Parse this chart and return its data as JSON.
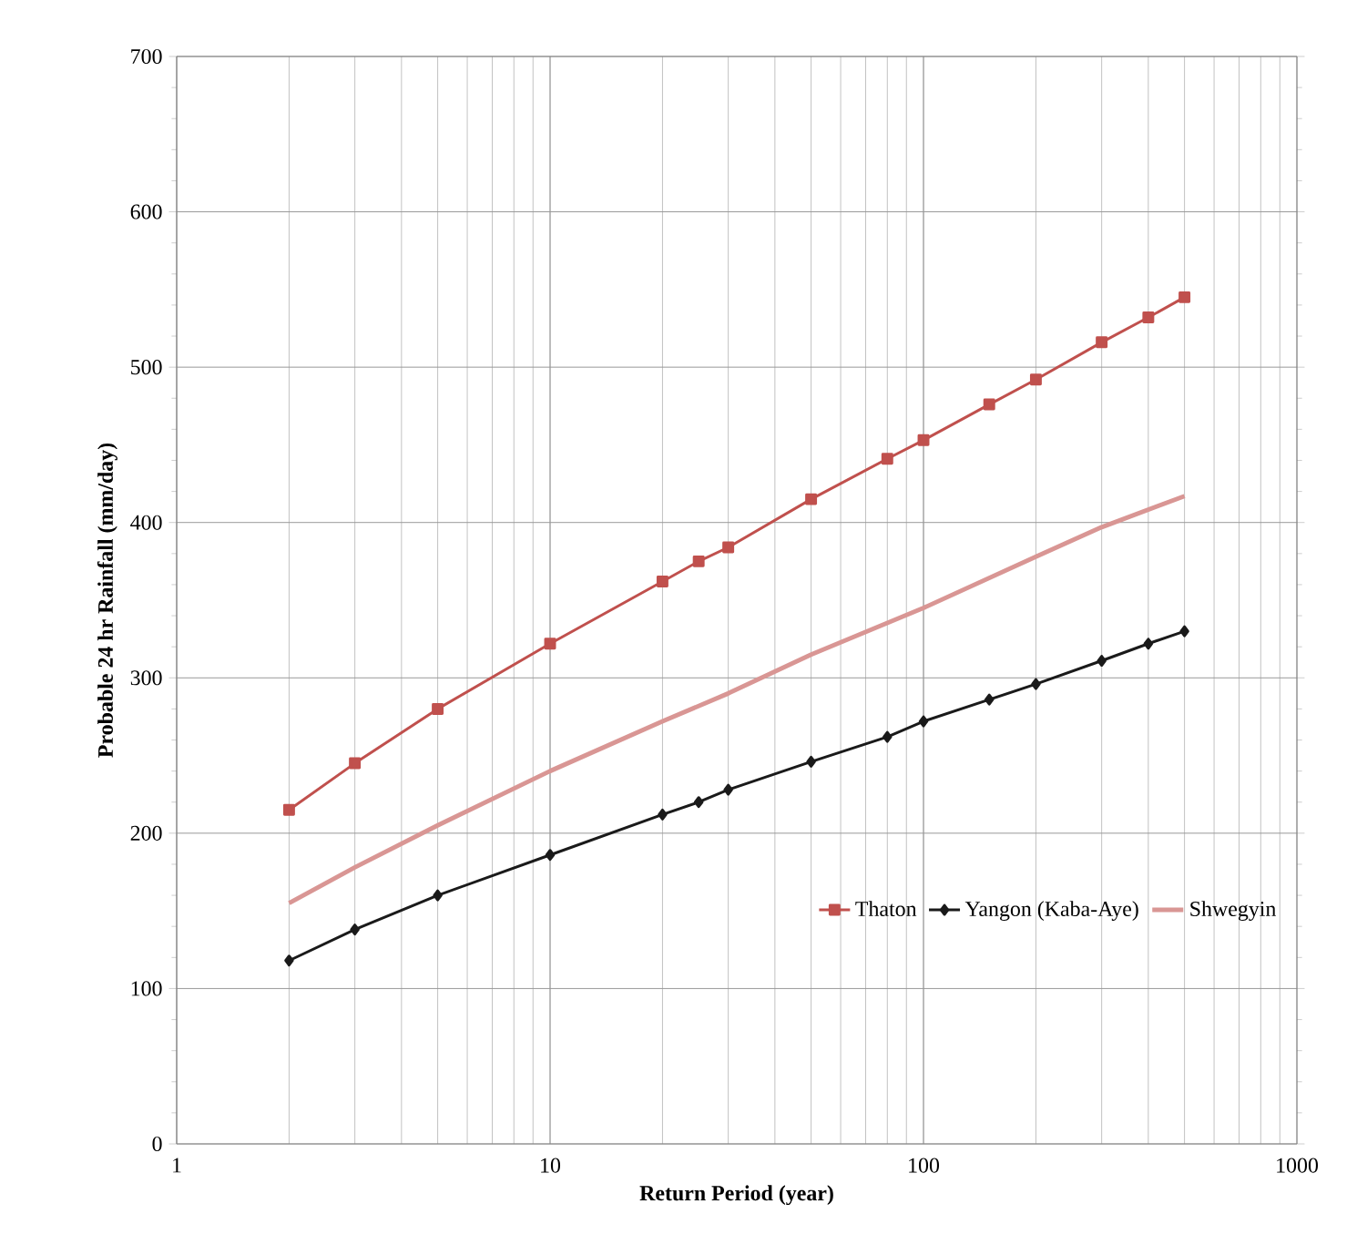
{
  "chart_data": {
    "type": "line",
    "xlabel": "Return Period (year)",
    "ylabel": "Probable  24 hr Rainfall (mm/day)",
    "log": "x",
    "grid": true,
    "legend": "bottom right",
    "xlim": [
      1,
      1000
    ],
    "xticks": [
      1,
      10,
      100,
      1000
    ],
    "ylim": [
      0,
      700
    ],
    "yticks": [
      0,
      100,
      200,
      300,
      400,
      500,
      600,
      700
    ],
    "series": [
      {
        "name": "Thaton",
        "color": "#c0504d",
        "marker": "square",
        "x": [
          2,
          3,
          5,
          10,
          20,
          25,
          30,
          50,
          80,
          100,
          150,
          200,
          300,
          400,
          500
        ],
        "values": [
          215,
          245,
          280,
          322,
          362,
          375,
          384,
          415,
          441,
          453,
          476,
          492,
          516,
          532,
          545
        ]
      },
      {
        "name": "Yangon (Kaba-Aye)",
        "color": "#1a1a1a",
        "marker": "diamond",
        "x": [
          2,
          3,
          5,
          10,
          20,
          25,
          30,
          50,
          80,
          100,
          150,
          200,
          300,
          400,
          500
        ],
        "values": [
          118,
          138,
          160,
          186,
          212,
          220,
          228,
          246,
          262,
          272,
          286,
          296,
          311,
          322,
          330
        ]
      },
      {
        "name": "Shwegyin",
        "color": "#d99694",
        "marker": "none",
        "x": [
          2,
          3,
          5,
          10,
          20,
          30,
          50,
          100,
          200,
          300,
          500
        ],
        "values": [
          155,
          178,
          205,
          240,
          272,
          290,
          315,
          345,
          378,
          397,
          417
        ]
      }
    ]
  }
}
